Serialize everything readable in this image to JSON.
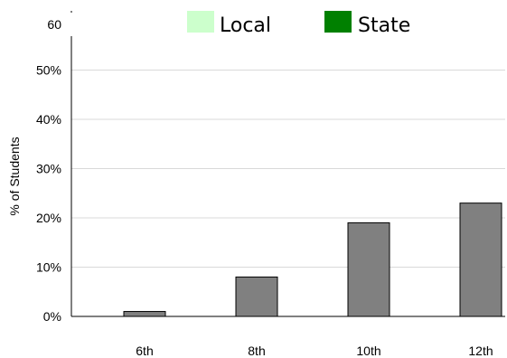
{
  "chart_data": {
    "type": "bar",
    "categories": [
      "6th",
      "8th",
      "10th",
      "12th"
    ],
    "series": [
      {
        "name": "Local",
        "values": [
          null,
          null,
          null,
          null
        ],
        "color": "#ccffcc"
      },
      {
        "name": "State",
        "values": [
          1,
          8,
          19,
          23
        ],
        "color": "#008000"
      }
    ],
    "bar_color": "#808080",
    "ylabel": "% of Students",
    "xlabel": "",
    "title": "",
    "ylim": [
      0,
      60
    ],
    "yticks": [
      {
        "value": 0,
        "label": "0%"
      },
      {
        "value": 10,
        "label": "10%"
      },
      {
        "value": 20,
        "label": "20%"
      },
      {
        "value": 30,
        "label": "30%"
      },
      {
        "value": 40,
        "label": "40%"
      },
      {
        "value": 50,
        "label": "50%"
      },
      {
        "value": 60,
        "label": "60"
      }
    ],
    "grid": true,
    "legend_position": "top"
  }
}
